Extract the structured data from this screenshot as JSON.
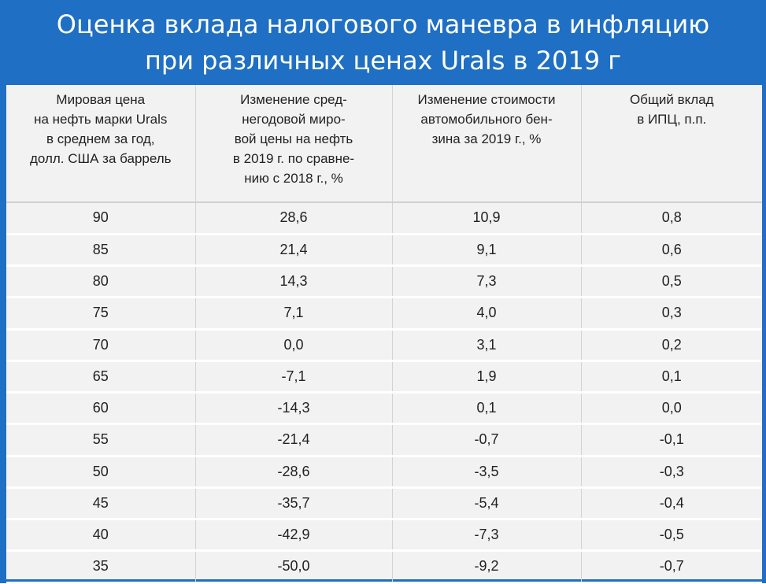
{
  "title": {
    "line1": "Оценка вклада налогового маневра в инфляцию",
    "line2": "при различных ценах Urals в 2019 г"
  },
  "table": {
    "headers": [
      [
        "Мировая цена",
        "на нефть марки Urals",
        "в среднем за год,",
        "долл. США за баррель"
      ],
      [
        "Изменение сред-",
        "негодовой миро-",
        "вой цены на нефть",
        "в 2019 г. по сравне-",
        "нию с 2018 г., %"
      ],
      [
        "Изменение стоимости",
        "автомобильного бен-",
        "зина за 2019 г., %"
      ],
      [
        "Общий вклад",
        "в ИПЦ, п.п."
      ]
    ],
    "rows": [
      [
        "90",
        "28,6",
        "10,9",
        "0,8"
      ],
      [
        "85",
        "21,4",
        "9,1",
        "0,6"
      ],
      [
        "80",
        "14,3",
        "7,3",
        "0,5"
      ],
      [
        "75",
        "7,1",
        "4,0",
        "0,3"
      ],
      [
        "70",
        "0,0",
        "3,1",
        "0,2"
      ],
      [
        "65",
        "-7,1",
        "1,9",
        "0,1"
      ],
      [
        "60",
        "-14,3",
        "0,1",
        "0,0"
      ],
      [
        "55",
        "-21,4",
        "-0,7",
        "-0,1"
      ],
      [
        "50",
        "-28,6",
        "-3,5",
        "-0,3"
      ],
      [
        "45",
        "-35,7",
        "-5,4",
        "-0,4"
      ],
      [
        "40",
        "-42,9",
        "-7,3",
        "-0,5"
      ],
      [
        "35",
        "-50,0",
        "-9,2",
        "-0,7"
      ]
    ]
  },
  "colors": {
    "accent": "#1f6fc4",
    "table_bg": "#f2f2f2"
  }
}
